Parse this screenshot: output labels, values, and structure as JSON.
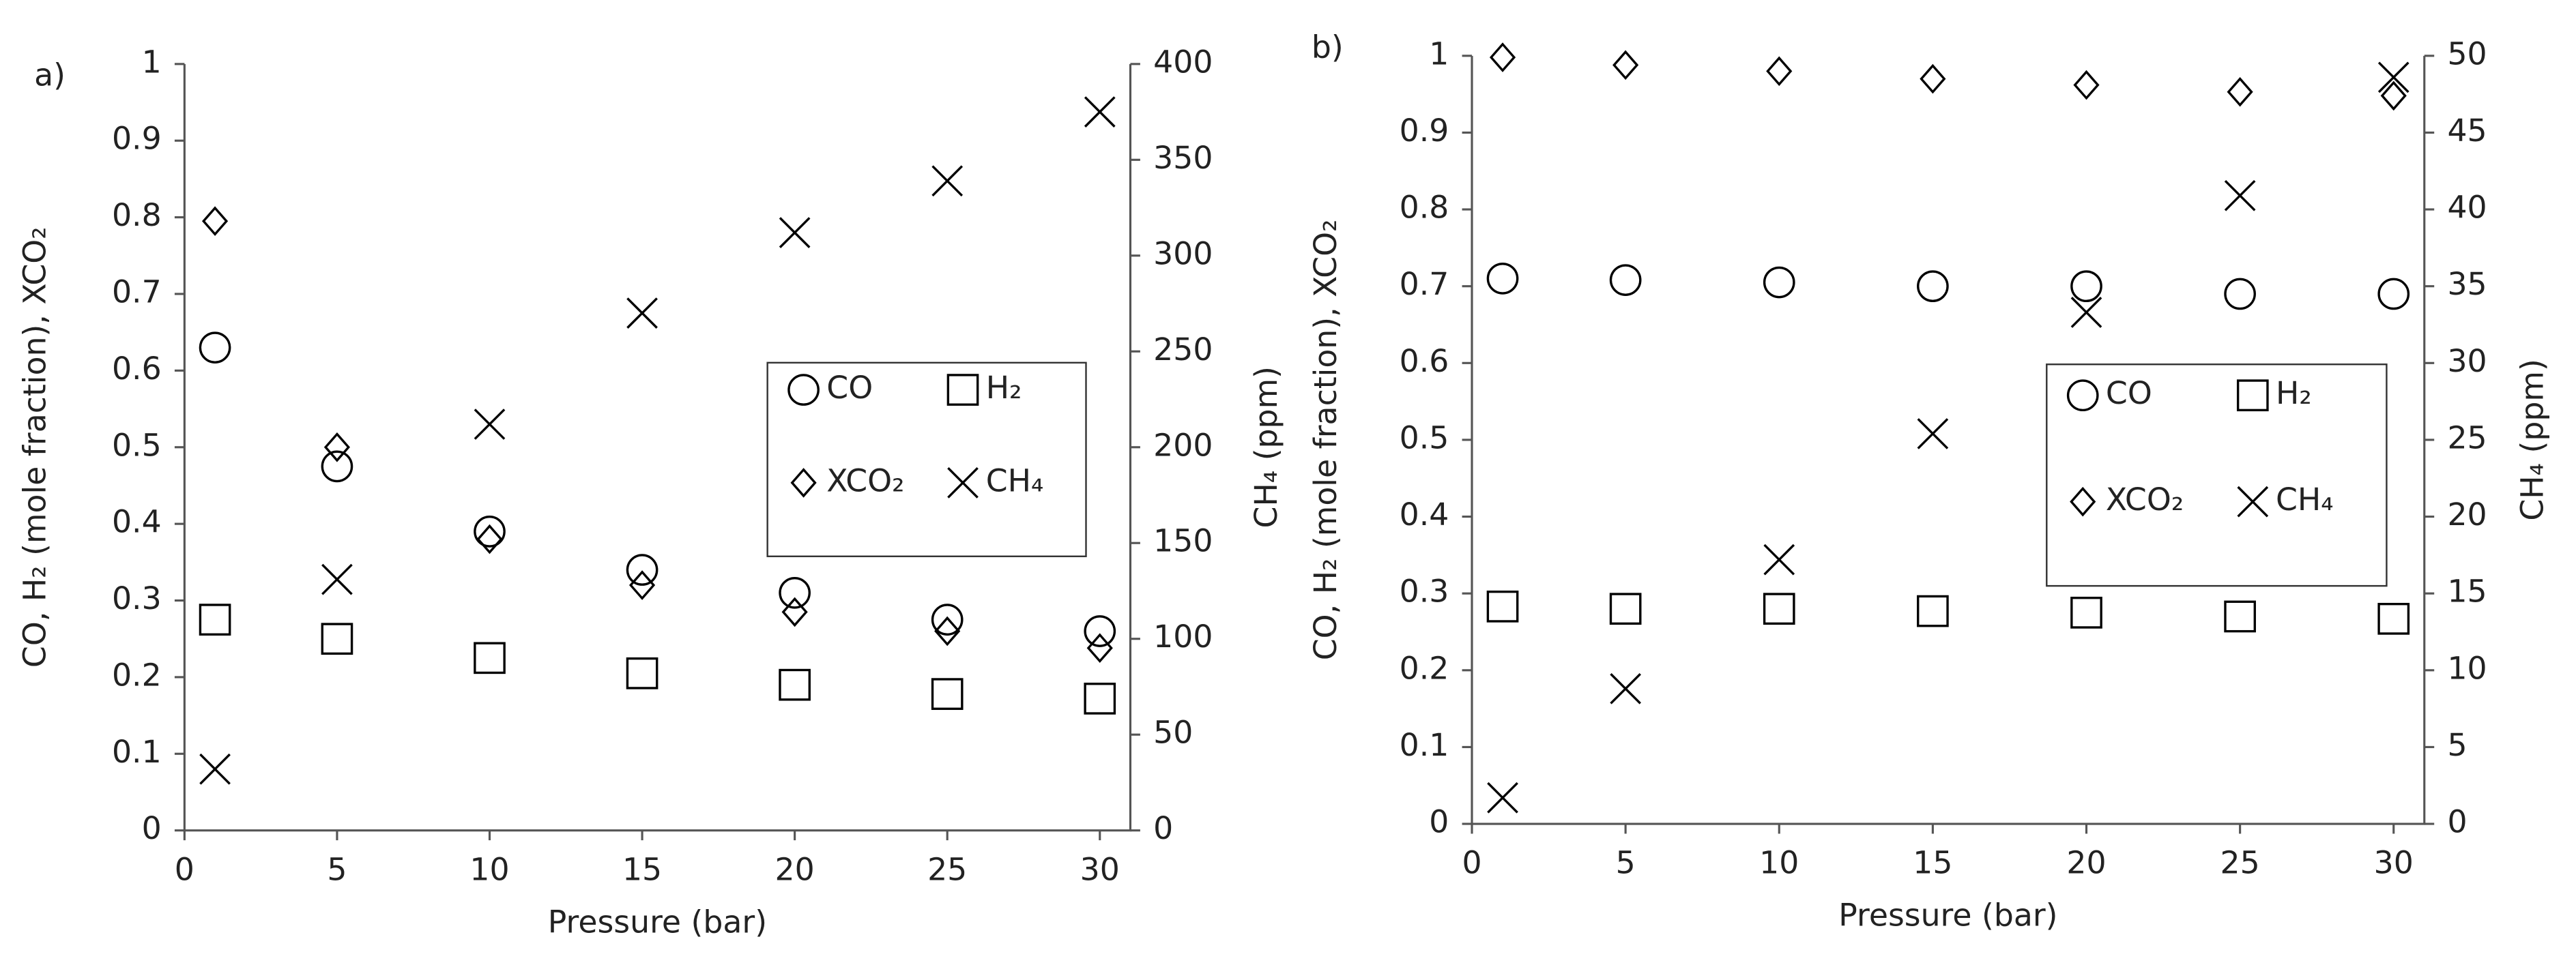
{
  "chart_data": [
    {
      "type": "scatter",
      "panel_label": "a)",
      "x_label": "Pressure (bar)",
      "y_label": "CO, H₂ (mole fraction), XCO₂",
      "y2_label": "CH₄ (ppm)",
      "x": [
        1,
        5,
        10,
        15,
        20,
        25,
        30
      ],
      "xlim": [
        0,
        31
      ],
      "xticks": [
        0,
        5,
        10,
        15,
        20,
        25,
        30
      ],
      "ylim": [
        0,
        1
      ],
      "yticks": [
        0,
        0.1,
        0.2,
        0.3,
        0.4,
        0.5,
        0.6,
        0.7,
        0.8,
        0.9,
        1
      ],
      "y2lim": [
        0,
        400
      ],
      "y2ticks": [
        0,
        50,
        100,
        150,
        200,
        250,
        300,
        350,
        400
      ],
      "legend": "right",
      "series": [
        {
          "name": "CO",
          "color": "#000000",
          "marker": "circle",
          "values": [
            0.63,
            0.475,
            0.39,
            0.34,
            0.31,
            0.275,
            0.26
          ]
        },
        {
          "name": "H₂",
          "color": "#000000",
          "marker": "square",
          "values": [
            0.275,
            0.25,
            0.225,
            0.205,
            0.19,
            0.178,
            0.172
          ]
        },
        {
          "name": "XCO₂",
          "color": "#000000",
          "marker": "diamond",
          "values": [
            0.795,
            0.5,
            0.38,
            0.32,
            0.285,
            0.26,
            0.238
          ]
        },
        {
          "name": "CH₄",
          "color": "#000000",
          "marker": "cross",
          "axis": "y2",
          "values": [
            32,
            131,
            212,
            270,
            312,
            339,
            375
          ]
        }
      ]
    },
    {
      "type": "scatter",
      "panel_label": "b)",
      "x_label": "Pressure (bar)",
      "y_label": "CO, H₂ (mole fraction), XCO₂",
      "y2_label": "CH₄ (ppm)",
      "x": [
        1,
        5,
        10,
        15,
        20,
        25,
        30
      ],
      "xlim": [
        0,
        31
      ],
      "xticks": [
        0,
        5,
        10,
        15,
        20,
        25,
        30
      ],
      "ylim": [
        0,
        1
      ],
      "yticks": [
        0,
        0.1,
        0.2,
        0.3,
        0.4,
        0.5,
        0.6,
        0.7,
        0.8,
        0.9,
        1
      ],
      "y2lim": [
        0,
        50
      ],
      "y2ticks": [
        0,
        5,
        10,
        15,
        20,
        25,
        30,
        35,
        40,
        45,
        50
      ],
      "legend": "right",
      "series": [
        {
          "name": "CO",
          "color": "#000000",
          "marker": "circle",
          "values": [
            0.71,
            0.708,
            0.705,
            0.7,
            0.7,
            0.69,
            0.69
          ]
        },
        {
          "name": "H₂",
          "color": "#000000",
          "marker": "square",
          "values": [
            0.283,
            0.28,
            0.28,
            0.277,
            0.275,
            0.27,
            0.267
          ]
        },
        {
          "name": "XCO₂",
          "color": "#000000",
          "marker": "diamond",
          "values": [
            0.998,
            0.988,
            0.98,
            0.97,
            0.962,
            0.953,
            0.948
          ]
        },
        {
          "name": "CH₄",
          "color": "#000000",
          "marker": "cross",
          "axis": "y2",
          "values": [
            1.7,
            8.8,
            17.2,
            25.4,
            33.3,
            40.9,
            48.6
          ]
        }
      ]
    }
  ]
}
